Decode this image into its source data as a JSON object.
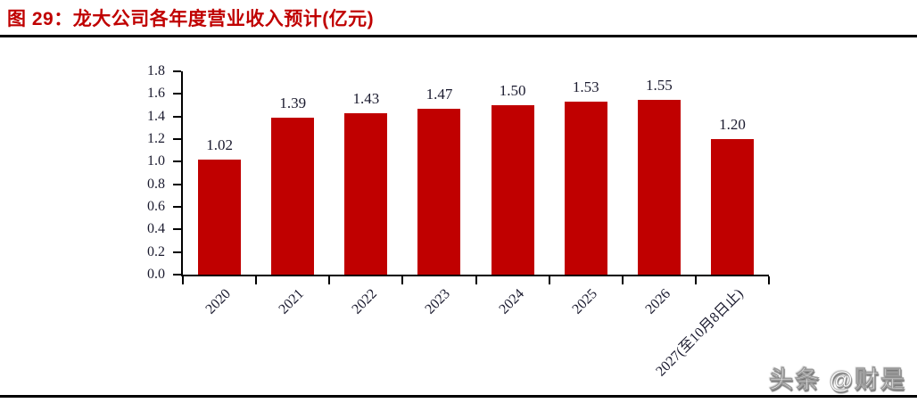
{
  "figure": {
    "title": "图 29：龙大公司各年度营业收入预计(亿元)"
  },
  "watermark": {
    "text": "头条 @财是"
  },
  "colors": {
    "bar": "#C00000",
    "title": "#C00000",
    "axis": "#000000",
    "tick_label": "#1A1A2E"
  },
  "chart_data": {
    "type": "bar",
    "title": "龙大公司各年度营业收入预计(亿元)",
    "categories": [
      "2020",
      "2021",
      "2022",
      "2023",
      "2024",
      "2025",
      "2026",
      "2027(至10月8日止)"
    ],
    "values": [
      1.02,
      1.39,
      1.43,
      1.47,
      1.5,
      1.53,
      1.55,
      1.2
    ],
    "data_labels": [
      "1.02",
      "1.39",
      "1.43",
      "1.47",
      "1.50",
      "1.53",
      "1.55",
      "1.20"
    ],
    "xlabel": "",
    "ylabel": "",
    "ylim": [
      0,
      1.8
    ],
    "yticks": [
      "0.0",
      "0.2",
      "0.4",
      "0.6",
      "0.8",
      "1.0",
      "1.2",
      "1.4",
      "1.6",
      "1.8"
    ],
    "grid": false,
    "legend": null,
    "series_name": "营业收入预计(亿元)"
  }
}
